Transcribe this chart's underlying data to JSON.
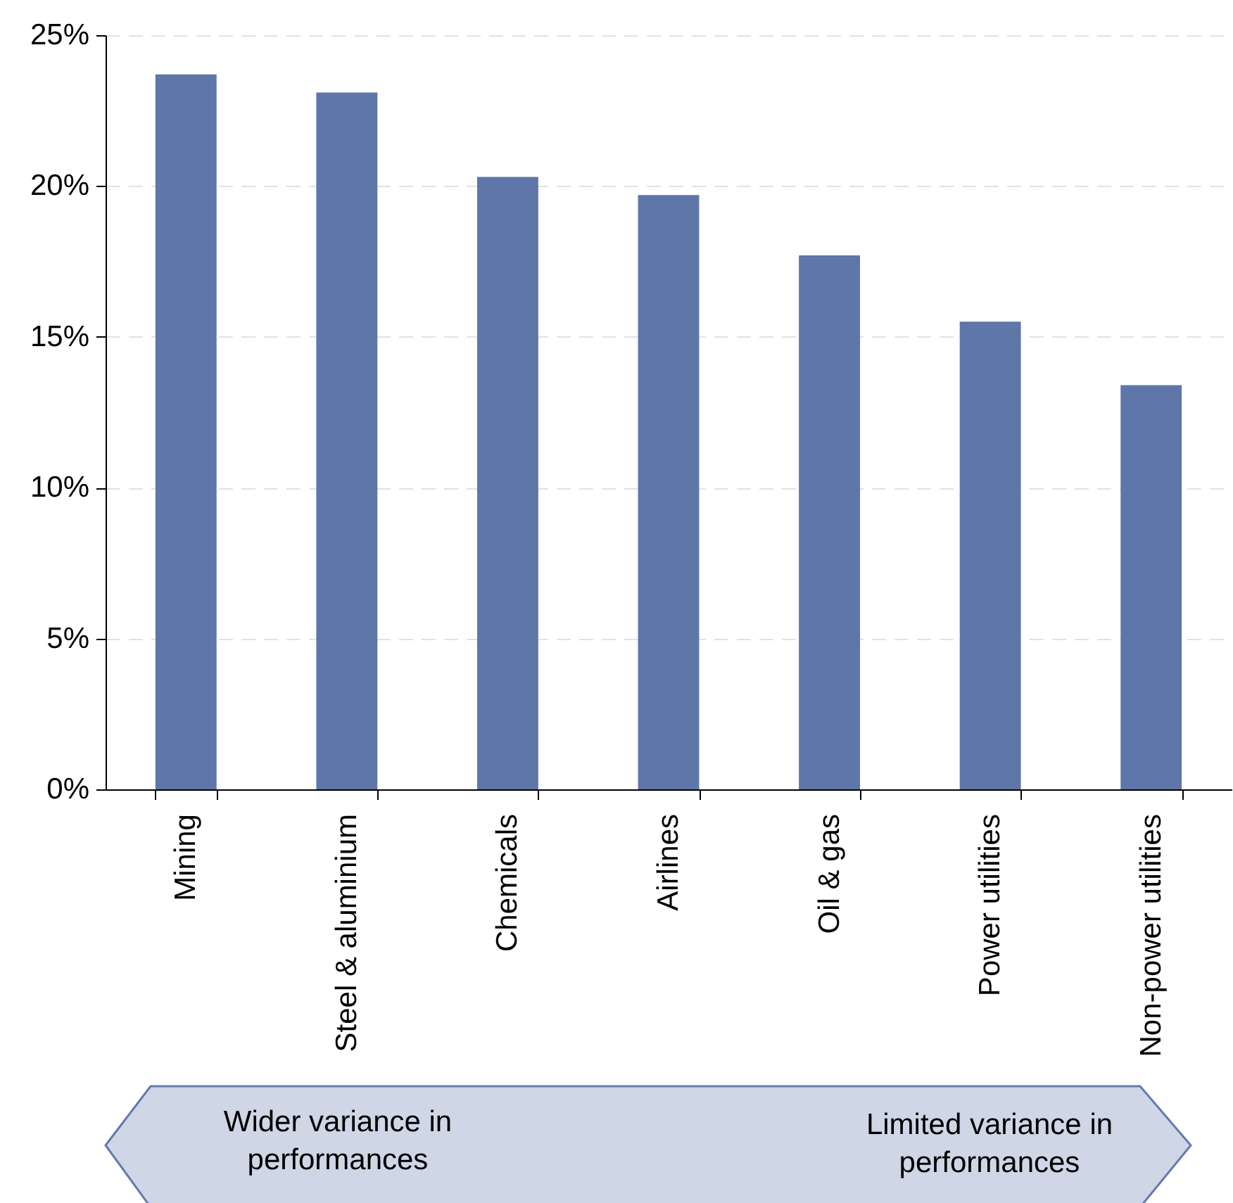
{
  "chart_data": {
    "type": "bar",
    "categories": [
      "Mining",
      "Steel & aluminium",
      "Chemicals",
      "Airlines",
      "Oil & gas",
      "Power utilities",
      "Non-power utilities"
    ],
    "values": [
      23.7,
      23.1,
      20.3,
      19.7,
      17.7,
      15.5,
      13.4
    ],
    "color": "#5e76a8",
    "ylim": [
      0,
      25
    ],
    "yticks": [
      {
        "value": 0,
        "label": "0%"
      },
      {
        "value": 5,
        "label": "5%"
      },
      {
        "value": 10,
        "label": "10%"
      },
      {
        "value": 15,
        "label": "15%"
      },
      {
        "value": 20,
        "label": "20%"
      },
      {
        "value": 25,
        "label": "25%"
      }
    ],
    "grid": "y",
    "annotations": [
      "Wider variance in performances",
      "Limited variance in performances"
    ]
  }
}
